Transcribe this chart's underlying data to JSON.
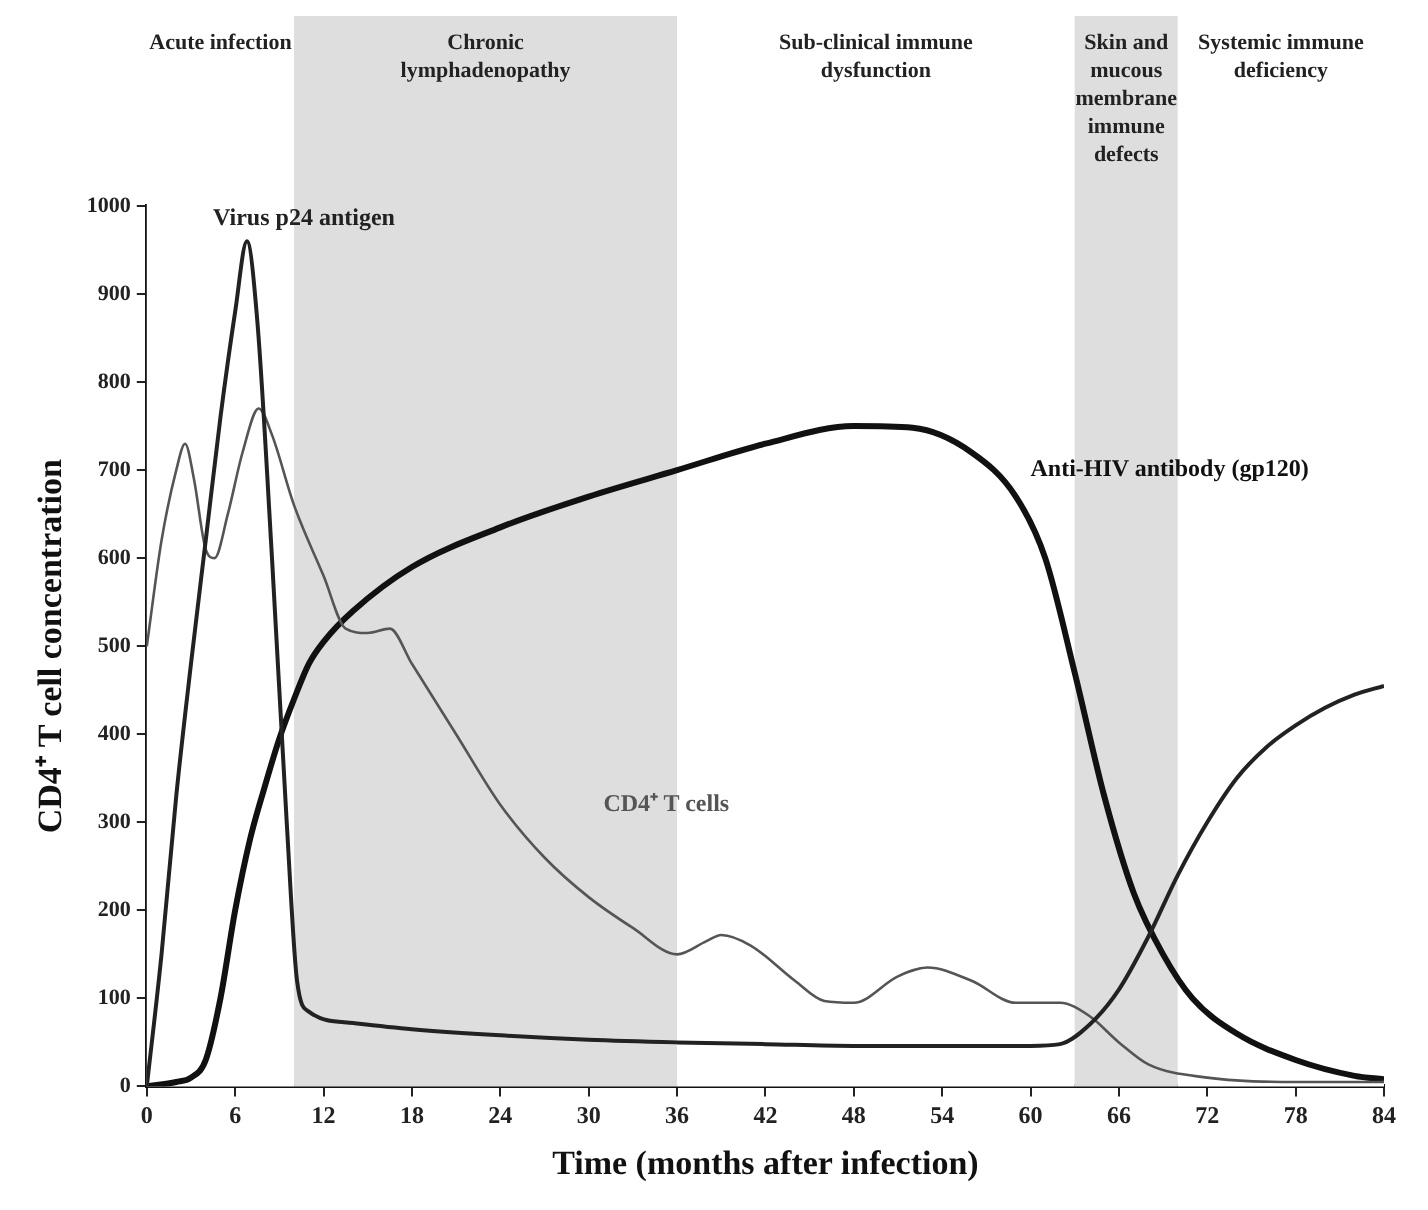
{
  "chart_data": {
    "type": "line",
    "xlabel": "Time (months after infection)",
    "ylabel": "CD4⁺ T cell concentration",
    "xlim": [
      0,
      84
    ],
    "xticks": [
      0,
      6,
      12,
      18,
      24,
      30,
      36,
      42,
      48,
      54,
      60,
      66,
      72,
      78,
      84
    ],
    "ylim": [
      0,
      1000
    ],
    "yticks": [
      0,
      100,
      200,
      300,
      400,
      500,
      600,
      700,
      800,
      900,
      1000
    ],
    "grid": false,
    "legend": false,
    "marker": "none",
    "line_style": "solid",
    "bands": [
      {
        "axis": "x",
        "from": 0,
        "to": 10,
        "label": "Acute infection",
        "color": "#ffffff"
      },
      {
        "axis": "x",
        "from": 10,
        "to": 36,
        "label": "Chronic lymphadenopathy",
        "color": "#dedede"
      },
      {
        "axis": "x",
        "from": 36,
        "to": 63,
        "label": "Sub-clinical immune dysfunction",
        "color": "#ffffff"
      },
      {
        "axis": "x",
        "from": 63,
        "to": 70,
        "label": "Skin and mucous membrane immune defects",
        "color": "#dedede"
      },
      {
        "axis": "x",
        "from": 70,
        "to": 84,
        "label": "Systemic immune deficiency",
        "color": "#ffffff"
      }
    ],
    "series": [
      {
        "name": "Virus p24 antigen",
        "color": "#222222",
        "x": [
          0,
          1,
          2,
          3,
          4,
          5,
          6,
          6.8,
          7.5,
          8.5,
          9.5,
          10.2,
          11,
          14,
          18,
          24,
          30,
          36,
          42,
          48,
          54,
          60,
          62,
          64,
          66,
          68,
          70,
          72,
          74,
          76,
          78,
          80,
          82,
          84
        ],
        "values": [
          0,
          150,
          330,
          480,
          620,
          760,
          880,
          960,
          870,
          600,
          300,
          120,
          85,
          72,
          65,
          58,
          53,
          50,
          48,
          46,
          46,
          46,
          48,
          70,
          110,
          170,
          240,
          300,
          350,
          385,
          410,
          430,
          445,
          455
        ]
      },
      {
        "name": "CD4⁺ T cells",
        "color": "#555555",
        "x": [
          0,
          1,
          2,
          2.6,
          3.2,
          4,
          4.6,
          5.5,
          6.5,
          7.6,
          8.5,
          10,
          12,
          13.5,
          15,
          16.5,
          18,
          21,
          24,
          27,
          30,
          33,
          36,
          38,
          39,
          41,
          44,
          46,
          48,
          51,
          53,
          56,
          59,
          62,
          64,
          66,
          68,
          72,
          78,
          84
        ],
        "values": [
          500,
          620,
          700,
          730,
          690,
          610,
          600,
          650,
          720,
          770,
          740,
          660,
          580,
          520,
          515,
          520,
          480,
          400,
          320,
          260,
          215,
          180,
          150,
          165,
          172,
          160,
          120,
          97,
          95,
          125,
          135,
          120,
          95,
          95,
          80,
          50,
          25,
          10,
          5,
          5
        ]
      },
      {
        "name": "Anti-HIV antibody (gp120)",
        "color": "#111111",
        "x": [
          0,
          2,
          3,
          4,
          5,
          6,
          7,
          8,
          9,
          10,
          11,
          12,
          14,
          18,
          24,
          30,
          36,
          42,
          48,
          52,
          56,
          59,
          61,
          63,
          65,
          67,
          69,
          71,
          74,
          78,
          82,
          84
        ],
        "values": [
          0,
          5,
          10,
          30,
          100,
          200,
          280,
          340,
          395,
          440,
          480,
          505,
          540,
          590,
          635,
          670,
          700,
          730,
          750,
          748,
          720,
          670,
          600,
          470,
          330,
          220,
          150,
          100,
          60,
          30,
          12,
          8
        ]
      }
    ]
  }
}
